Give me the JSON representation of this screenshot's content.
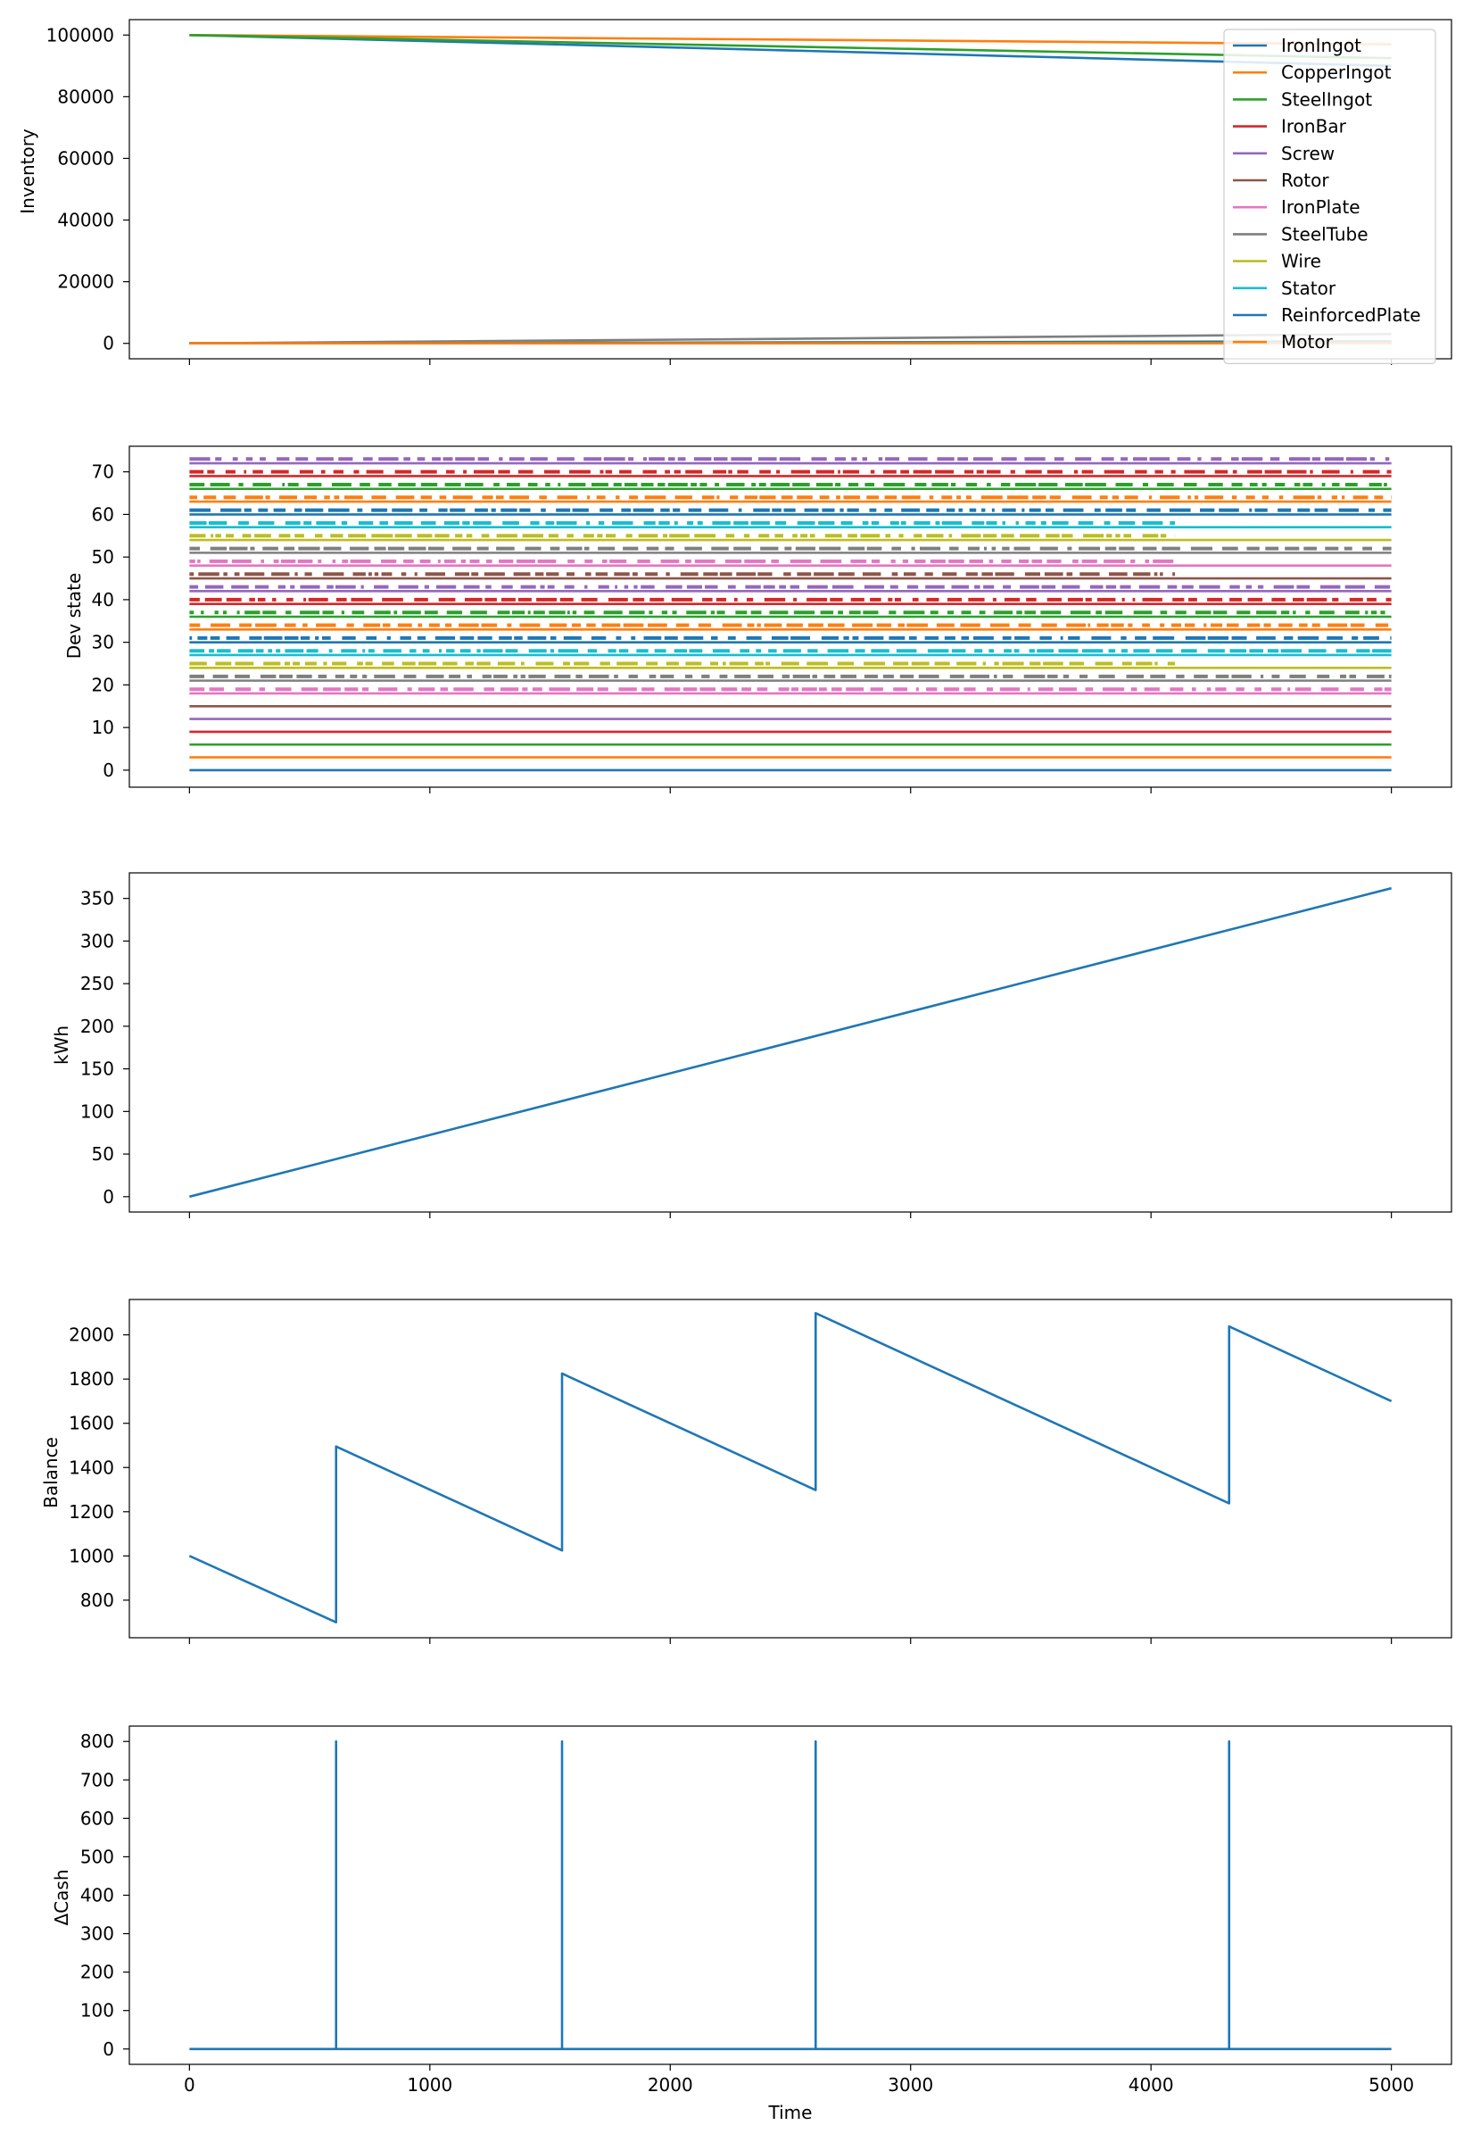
{
  "colors": [
    "#1f77b4",
    "#ff7f0e",
    "#2ca02c",
    "#d62728",
    "#9467bd",
    "#8c564b",
    "#e377c2",
    "#7f7f7f",
    "#bcbd22",
    "#17becf"
  ],
  "chart_data": [
    {
      "type": "line",
      "ylabel": "Inventory",
      "xlim": [
        -250,
        5250
      ],
      "ylim": [
        -5000,
        105000
      ],
      "yticks": [
        0,
        20000,
        40000,
        60000,
        80000,
        100000
      ],
      "legend_position": "upper right",
      "series": [
        {
          "name": "IronIngot",
          "color": "#1f77b4",
          "x": [
            0,
            5000
          ],
          "y": [
            100000,
            90000
          ]
        },
        {
          "name": "CopperIngot",
          "color": "#ff7f0e",
          "x": [
            0,
            5000
          ],
          "y": [
            100000,
            97000
          ]
        },
        {
          "name": "SteelIngot",
          "color": "#2ca02c",
          "x": [
            0,
            5000
          ],
          "y": [
            100000,
            92500
          ]
        },
        {
          "name": "IronBar",
          "color": "#d62728",
          "x": [
            0,
            5000
          ],
          "y": [
            0,
            300
          ]
        },
        {
          "name": "Screw",
          "color": "#9467bd",
          "x": [
            0,
            5000
          ],
          "y": [
            0,
            500
          ]
        },
        {
          "name": "Rotor",
          "color": "#8c564b",
          "x": [
            0,
            5000
          ],
          "y": [
            0,
            200
          ]
        },
        {
          "name": "IronPlate",
          "color": "#e377c2",
          "x": [
            0,
            5000
          ],
          "y": [
            0,
            400
          ]
        },
        {
          "name": "SteelTube",
          "color": "#7f7f7f",
          "x": [
            0,
            5000
          ],
          "y": [
            0,
            3000
          ]
        },
        {
          "name": "Wire",
          "color": "#bcbd22",
          "x": [
            0,
            5000
          ],
          "y": [
            0,
            700
          ]
        },
        {
          "name": "Stator",
          "color": "#17becf",
          "x": [
            0,
            5000
          ],
          "y": [
            0,
            100
          ]
        },
        {
          "name": "ReinforcedPlate",
          "color": "#1f77b4",
          "x": [
            0,
            5000
          ],
          "y": [
            0,
            600
          ]
        },
        {
          "name": "Motor",
          "color": "#ff7f0e",
          "x": [
            0,
            5000
          ],
          "y": [
            0,
            50
          ]
        }
      ]
    },
    {
      "type": "line",
      "ylabel": "Dev state",
      "xlim": [
        -250,
        5250
      ],
      "ylim": [
        -4,
        76
      ],
      "yticks": [
        0,
        10,
        20,
        30,
        40,
        50,
        60,
        70
      ],
      "lanes": [
        {
          "y": 0,
          "color": "#1f77b4",
          "active_until": 0
        },
        {
          "y": 3,
          "color": "#ff7f0e",
          "active_until": 0
        },
        {
          "y": 6,
          "color": "#2ca02c",
          "active_until": 0
        },
        {
          "y": 9,
          "color": "#d62728",
          "active_until": 0
        },
        {
          "y": 12,
          "color": "#9467bd",
          "active_until": 0
        },
        {
          "y": 15,
          "color": "#8c564b",
          "active_until": 0
        },
        {
          "y": 18,
          "color": "#e377c2",
          "active_until": 5000
        },
        {
          "y": 21,
          "color": "#7f7f7f",
          "active_until": 5000
        },
        {
          "y": 24,
          "color": "#bcbd22",
          "active_until": 4100
        },
        {
          "y": 27,
          "color": "#17becf",
          "active_until": 5000
        },
        {
          "y": 30,
          "color": "#1f77b4",
          "active_until": 5000
        },
        {
          "y": 33,
          "color": "#ff7f0e",
          "active_until": 5000
        },
        {
          "y": 36,
          "color": "#2ca02c",
          "active_until": 5000
        },
        {
          "y": 39,
          "color": "#d62728",
          "active_until": 5000
        },
        {
          "y": 42,
          "color": "#9467bd",
          "active_until": 5000
        },
        {
          "y": 45,
          "color": "#8c564b",
          "active_until": 4100
        },
        {
          "y": 48,
          "color": "#e377c2",
          "active_until": 4100
        },
        {
          "y": 51,
          "color": "#7f7f7f",
          "active_until": 5000
        },
        {
          "y": 54,
          "color": "#bcbd22",
          "active_until": 4100
        },
        {
          "y": 57,
          "color": "#17becf",
          "active_until": 4100
        },
        {
          "y": 60,
          "color": "#1f77b4",
          "active_until": 5000
        },
        {
          "y": 63,
          "color": "#ff7f0e",
          "active_until": 5000
        },
        {
          "y": 66,
          "color": "#2ca02c",
          "active_until": 5000
        },
        {
          "y": 69,
          "color": "#d62728",
          "active_until": 5000
        },
        {
          "y": 72,
          "color": "#9467bd",
          "active_until": 5000
        }
      ]
    },
    {
      "type": "line",
      "ylabel": "kWh",
      "xlim": [
        -250,
        5250
      ],
      "ylim": [
        -18,
        380
      ],
      "yticks": [
        0,
        50,
        100,
        150,
        200,
        250,
        300,
        350
      ],
      "series": [
        {
          "color": "#1f77b4",
          "x": [
            0,
            5000
          ],
          "y": [
            0,
            362
          ]
        }
      ]
    },
    {
      "type": "line",
      "ylabel": "Balance",
      "xlim": [
        -250,
        5250
      ],
      "ylim": [
        630,
        2160
      ],
      "yticks": [
        800,
        1000,
        1200,
        1400,
        1600,
        1800,
        2000
      ],
      "series": [
        {
          "color": "#1f77b4",
          "x": [
            0,
            610,
            610,
            1550,
            1550,
            2605,
            2605,
            4325,
            4325,
            5000
          ],
          "y": [
            1000,
            700,
            1495,
            1025,
            1825,
            1298,
            2098,
            1238,
            2038,
            1700
          ]
        }
      ]
    },
    {
      "type": "line",
      "ylabel": "ΔCash",
      "xlabel": "Time",
      "xlim": [
        -250,
        5250
      ],
      "ylim": [
        -40,
        840
      ],
      "yticks": [
        0,
        100,
        200,
        300,
        400,
        500,
        600,
        700,
        800
      ],
      "xticks": [
        0,
        1000,
        2000,
        3000,
        4000,
        5000
      ],
      "series": [
        {
          "color": "#1f77b4",
          "x": [
            0,
            610,
            610,
            610,
            1550,
            1550,
            1550,
            2605,
            2605,
            2605,
            4325,
            4325,
            4325,
            5000
          ],
          "y": [
            0,
            0,
            800,
            0,
            0,
            800,
            0,
            0,
            800,
            0,
            0,
            800,
            0,
            0
          ]
        }
      ]
    }
  ]
}
